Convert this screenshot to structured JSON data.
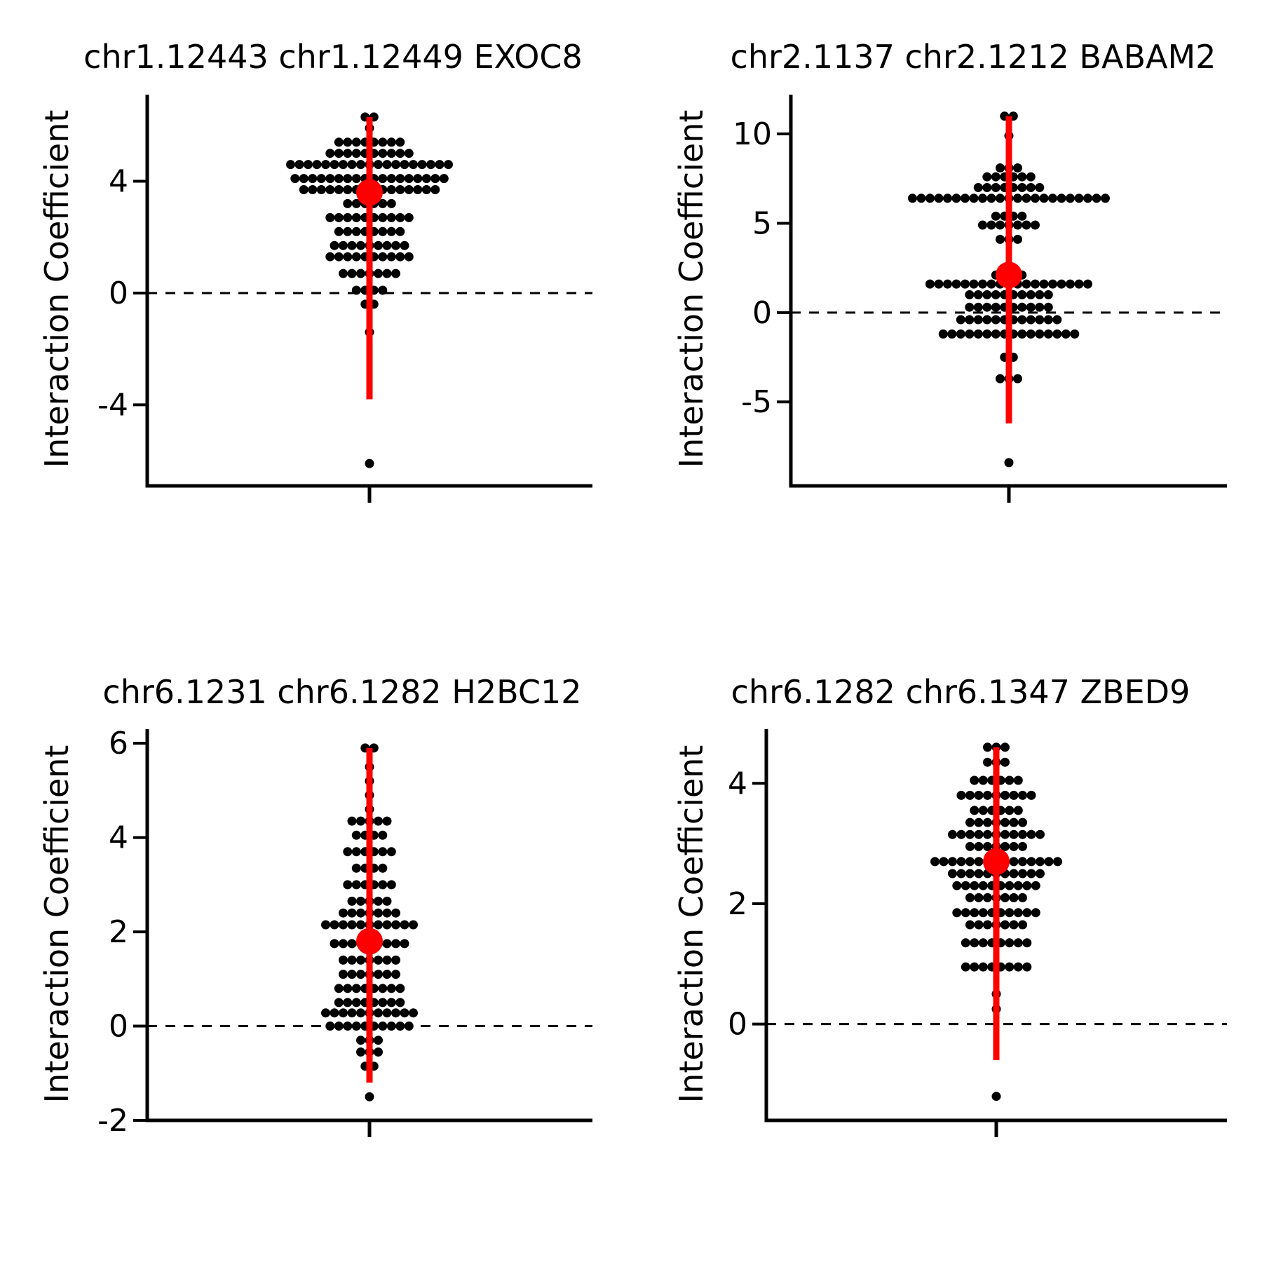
{
  "chart_data": [
    {
      "type": "scatter",
      "title": "chr1.12443 chr1.12449 EXOC8",
      "ylabel": "Interaction Coefficient",
      "yticks": [
        -4,
        0,
        4
      ],
      "ylim": [
        -6.9,
        7.1
      ],
      "reference_line": 0,
      "summary": {
        "estimate": 3.6,
        "lower": -3.8,
        "upper": 6.3
      },
      "points": [
        {
          "y": 6.3,
          "n": 2
        },
        {
          "y": 5.9,
          "n": 1
        },
        {
          "y": 5.4,
          "n": 8
        },
        {
          "y": 5.0,
          "n": 10
        },
        {
          "y": 4.6,
          "n": 19
        },
        {
          "y": 4.1,
          "n": 18
        },
        {
          "y": 3.7,
          "n": 16
        },
        {
          "y": 3.2,
          "n": 6
        },
        {
          "y": 2.7,
          "n": 10
        },
        {
          "y": 2.2,
          "n": 8
        },
        {
          "y": 1.7,
          "n": 9
        },
        {
          "y": 1.3,
          "n": 10
        },
        {
          "y": 0.7,
          "n": 7
        },
        {
          "y": 0.1,
          "n": 4
        },
        {
          "y": -0.4,
          "n": 2
        },
        {
          "y": -1.4,
          "n": 1
        },
        {
          "y": -6.1,
          "n": 1
        }
      ]
    },
    {
      "type": "scatter",
      "title": "chr2.1137 chr2.1212 BABAM2",
      "ylabel": "Interaction Coefficient",
      "yticks": [
        -5,
        0,
        5,
        10
      ],
      "ylim": [
        -9.7,
        12.2
      ],
      "reference_line": 0,
      "summary": {
        "estimate": 2.1,
        "lower": -6.2,
        "upper": 11.0
      },
      "points": [
        {
          "y": 11.0,
          "n": 2
        },
        {
          "y": 9.9,
          "n": 1
        },
        {
          "y": 8.1,
          "n": 3
        },
        {
          "y": 7.6,
          "n": 6
        },
        {
          "y": 7.0,
          "n": 8
        },
        {
          "y": 6.4,
          "n": 23
        },
        {
          "y": 5.4,
          "n": 4
        },
        {
          "y": 4.9,
          "n": 7
        },
        {
          "y": 4.1,
          "n": 3
        },
        {
          "y": 2.1,
          "n": 4
        },
        {
          "y": 1.6,
          "n": 19
        },
        {
          "y": 1.0,
          "n": 10
        },
        {
          "y": 0.3,
          "n": 10
        },
        {
          "y": -0.4,
          "n": 12
        },
        {
          "y": -1.2,
          "n": 16
        },
        {
          "y": -2.5,
          "n": 2
        },
        {
          "y": -3.7,
          "n": 3
        },
        {
          "y": -8.4,
          "n": 1
        }
      ]
    },
    {
      "type": "scatter",
      "title": "chr6.1231 chr6.1282 H2BC12",
      "ylabel": "Interaction Coefficient",
      "yticks": [
        -2,
        0,
        2,
        4,
        6
      ],
      "ylim": [
        -2.0,
        6.3
      ],
      "reference_line": 0,
      "summary": {
        "estimate": 1.8,
        "lower": -1.2,
        "upper": 5.9
      },
      "points": [
        {
          "y": 5.9,
          "n": 2
        },
        {
          "y": 5.5,
          "n": 1
        },
        {
          "y": 5.2,
          "n": 1
        },
        {
          "y": 4.9,
          "n": 1
        },
        {
          "y": 4.6,
          "n": 1
        },
        {
          "y": 4.35,
          "n": 5
        },
        {
          "y": 4.05,
          "n": 4
        },
        {
          "y": 3.7,
          "n": 6
        },
        {
          "y": 3.35,
          "n": 4
        },
        {
          "y": 3.0,
          "n": 6
        },
        {
          "y": 2.65,
          "n": 5
        },
        {
          "y": 2.4,
          "n": 7
        },
        {
          "y": 2.15,
          "n": 11
        },
        {
          "y": 1.75,
          "n": 9
        },
        {
          "y": 1.4,
          "n": 7
        },
        {
          "y": 1.1,
          "n": 7
        },
        {
          "y": 0.8,
          "n": 8
        },
        {
          "y": 0.5,
          "n": 8
        },
        {
          "y": 0.28,
          "n": 11
        },
        {
          "y": 0.0,
          "n": 10
        },
        {
          "y": -0.3,
          "n": 3
        },
        {
          "y": -0.55,
          "n": 3
        },
        {
          "y": -0.85,
          "n": 2
        },
        {
          "y": -1.5,
          "n": 1
        }
      ]
    },
    {
      "type": "scatter",
      "title": "chr6.1282 chr6.1347 ZBED9",
      "ylabel": "Interaction Coefficient",
      "yticks": [
        0,
        2,
        4
      ],
      "ylim": [
        -1.6,
        4.9
      ],
      "reference_line": 0,
      "summary": {
        "estimate": 2.7,
        "lower": -0.6,
        "upper": 4.6
      },
      "points": [
        {
          "y": 4.6,
          "n": 3
        },
        {
          "y": 4.35,
          "n": 3
        },
        {
          "y": 4.05,
          "n": 6
        },
        {
          "y": 3.8,
          "n": 9
        },
        {
          "y": 3.55,
          "n": 6
        },
        {
          "y": 3.35,
          "n": 7
        },
        {
          "y": 3.15,
          "n": 11
        },
        {
          "y": 2.95,
          "n": 7
        },
        {
          "y": 2.7,
          "n": 15
        },
        {
          "y": 2.5,
          "n": 11
        },
        {
          "y": 2.3,
          "n": 10
        },
        {
          "y": 2.1,
          "n": 7
        },
        {
          "y": 1.85,
          "n": 10
        },
        {
          "y": 1.65,
          "n": 7
        },
        {
          "y": 1.35,
          "n": 8
        },
        {
          "y": 0.95,
          "n": 8
        },
        {
          "y": 0.5,
          "n": 1
        },
        {
          "y": 0.25,
          "n": 1
        },
        {
          "y": -1.2,
          "n": 1
        }
      ]
    }
  ],
  "colors": {
    "points": "#000000",
    "estimate": "#ff0000",
    "axes": "#000000",
    "reference_line": "#000000",
    "background": "#ffffff"
  }
}
